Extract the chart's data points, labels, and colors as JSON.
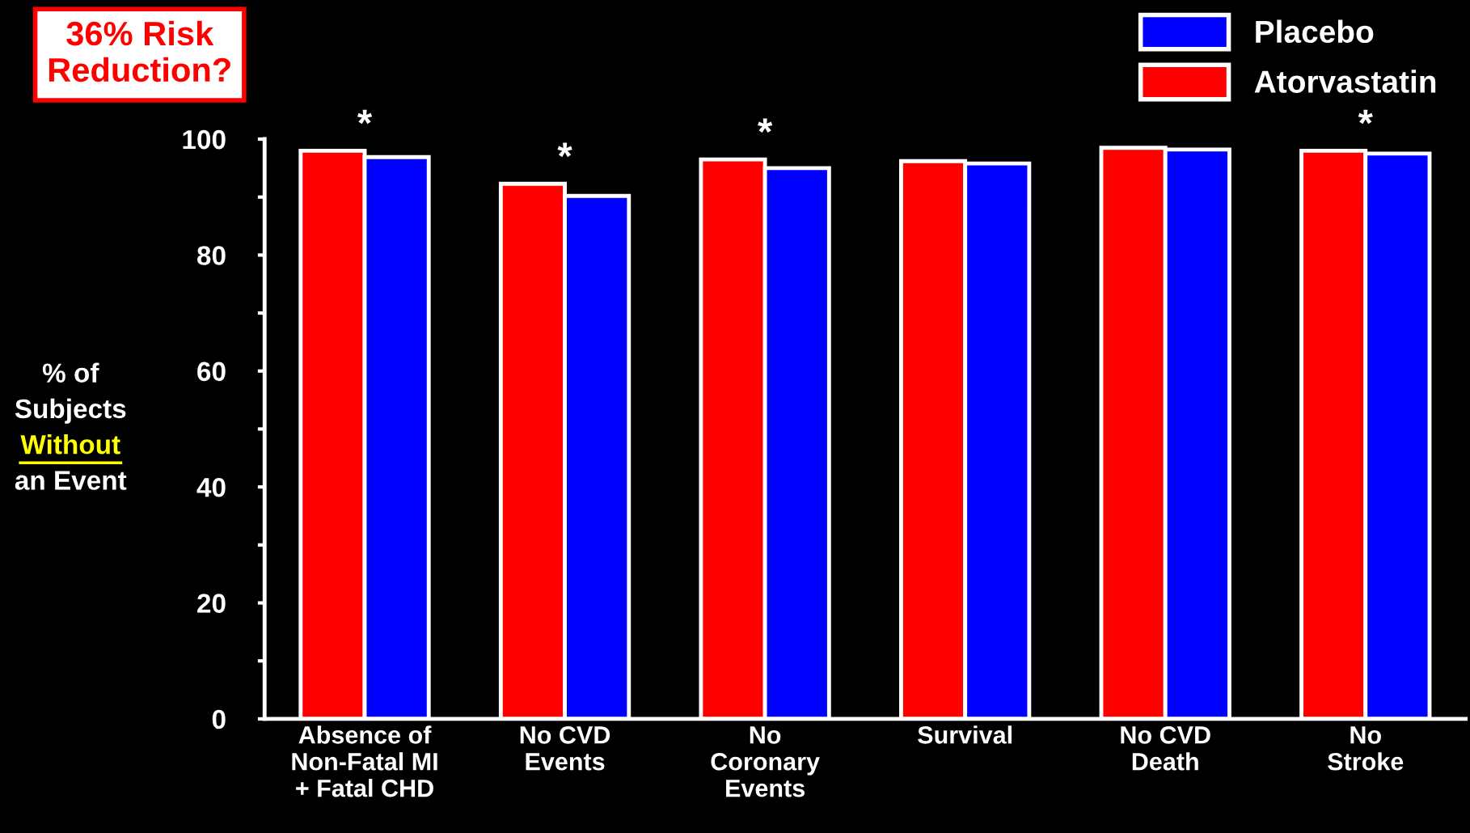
{
  "chart_data": {
    "type": "bar",
    "categories": [
      "Absence of\nNon-Fatal MI\n+ Fatal CHD",
      "No CVD\nEvents",
      "No\nCoronary\nEvents",
      "Survival",
      "No CVD\nDeath",
      "No\nStroke"
    ],
    "series": [
      {
        "name": "Atorvastatin",
        "color": "#ff0000",
        "values": [
          98.0,
          92.3,
          96.5,
          96.2,
          98.5,
          98.0
        ]
      },
      {
        "name": "Placebo",
        "color": "#0000ff",
        "values": [
          96.9,
          90.2,
          95.0,
          95.8,
          98.2,
          97.5
        ]
      }
    ],
    "ylabel": "% of\nSubjects\nWithout\nan Event",
    "ylim": [
      0,
      100
    ],
    "yticks": [
      0,
      {
        "value": 10,
        "label": null
      },
      20,
      {
        "value": 30,
        "label": null
      },
      40,
      {
        "value": 50,
        "label": null
      },
      60,
      {
        "value": 70,
        "label": null
      },
      80,
      {
        "value": 90,
        "label": null
      },
      100
    ],
    "annotations": [
      "36% Risk\nReduction?",
      {
        "text": "*",
        "x": "Absence of\nNon-Fatal MI\n+ Fatal CHD",
        "y": 98.0
      },
      {
        "text": "*",
        "x": "No CVD\nEvents",
        "y": 92.3
      },
      {
        "text": "*",
        "x": "No\nCoronary\nEvents",
        "y": 96.5
      },
      {
        "text": "*",
        "x": "No\nStroke",
        "y": 98.0
      }
    ],
    "legend": "top right",
    "grid": false
  }
}
